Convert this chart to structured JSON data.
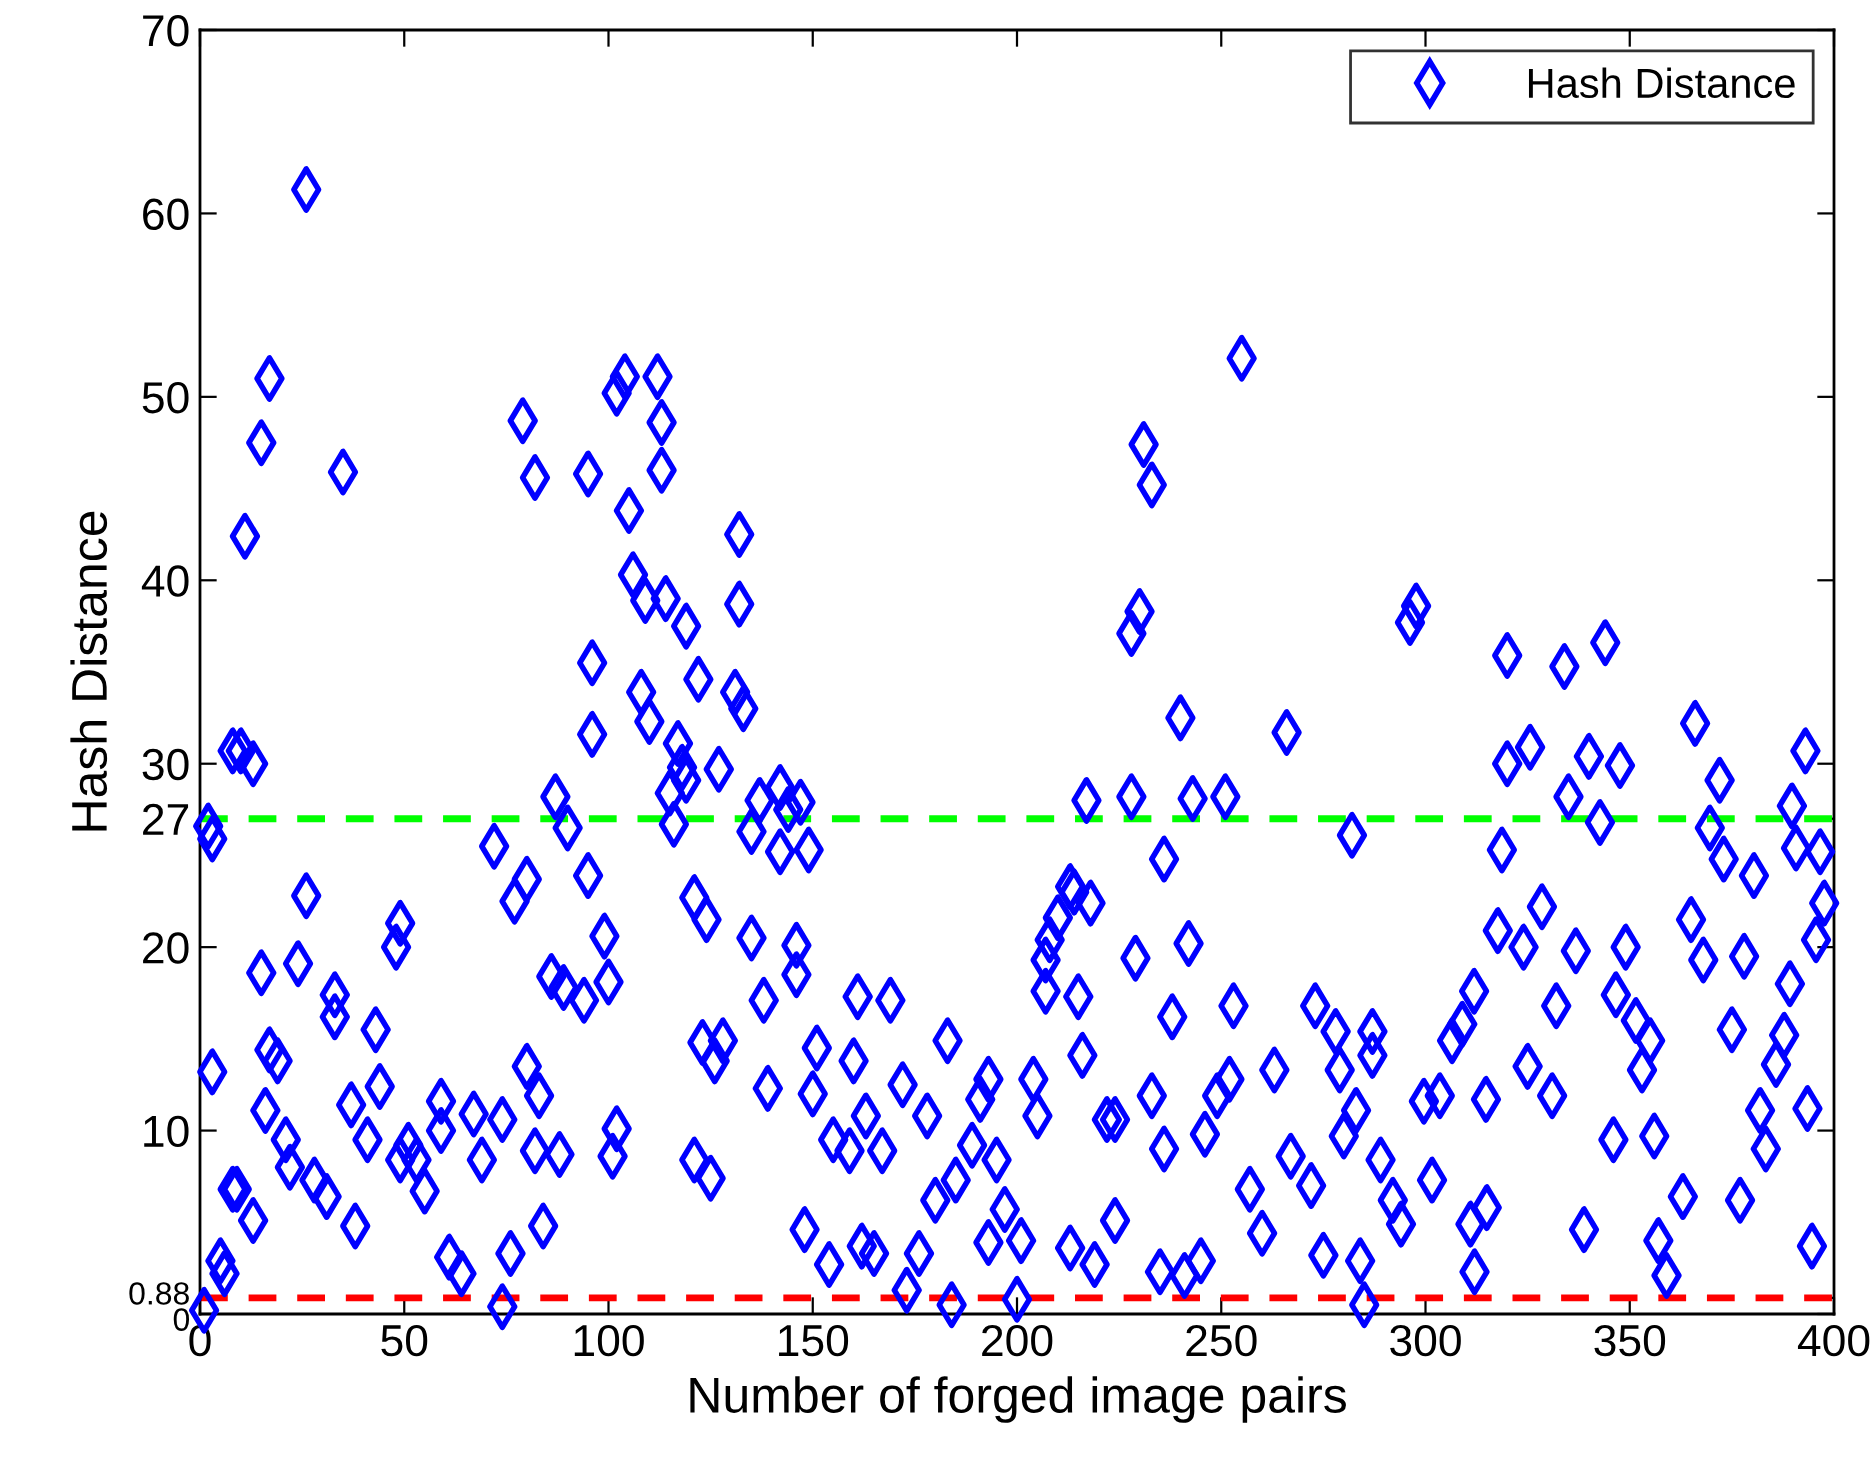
{
  "chart_data": {
    "type": "scatter",
    "xlabel": "Number of forged image pairs",
    "ylabel": "Hash Distance",
    "xlim": [
      0,
      400
    ],
    "xticks": [
      0,
      50,
      100,
      150,
      200,
      250,
      300,
      350,
      400
    ],
    "ylim": [
      0,
      70
    ],
    "yticks": [
      0,
      0.88,
      10,
      20,
      27,
      30,
      40,
      50,
      60,
      70
    ],
    "grid": false,
    "legend": "top right",
    "marker": "diamond",
    "ref_lines": [
      {
        "axis": "y",
        "value": 27,
        "color": "#00ff00",
        "line_style": "dashed"
      },
      {
        "axis": "y",
        "value": 0.88,
        "color": "#ff0000",
        "line_style": "dashed"
      }
    ],
    "series": [
      {
        "name": "Hash Distance",
        "color": "#0000ff",
        "x": [
          2,
          3,
          3,
          5,
          6,
          1,
          8,
          9,
          8,
          10,
          13,
          11,
          15,
          17,
          26,
          35,
          15,
          26,
          24,
          16,
          19,
          21,
          22,
          13,
          17,
          33,
          33,
          28,
          31,
          37,
          43,
          44,
          38,
          41,
          49,
          49,
          48,
          51,
          53,
          55,
          59,
          59,
          61,
          64,
          67,
          69,
          72,
          74,
          74,
          76,
          79,
          82,
          77,
          80,
          80,
          83,
          82,
          84,
          86,
          87,
          89,
          90,
          88,
          94,
          95,
          95,
          96,
          96,
          99,
          100,
          101,
          102,
          102,
          104,
          105,
          106,
          109,
          108,
          110,
          112,
          113,
          113,
          114,
          117,
          118,
          115,
          119,
          116,
          119,
          122,
          121,
          123,
          126,
          124,
          125,
          121,
          128,
          127,
          132,
          132,
          133,
          131,
          135,
          135,
          138,
          139,
          137,
          142,
          144,
          142,
          147,
          149,
          146,
          146,
          148,
          150,
          151,
          154,
          155,
          159,
          161,
          160,
          162,
          163,
          165,
          167,
          169,
          172,
          173,
          176,
          178,
          180,
          183,
          184,
          185,
          189,
          191,
          193,
          193,
          195,
          197,
          200,
          201,
          204,
          205,
          207,
          208,
          207,
          210,
          213,
          214,
          215,
          216,
          218,
          217,
          213,
          219,
          222,
          224,
          224,
          228,
          228,
          230,
          231,
          233,
          229,
          233,
          236,
          236,
          235,
          238,
          240,
          242,
          243,
          241,
          245,
          246,
          249,
          251,
          253,
          255,
          252,
          257,
          260,
          263,
          266,
          267,
          272,
          273,
          275,
          278,
          279,
          280,
          282,
          283,
          284,
          285,
          287,
          287,
          289,
          292,
          294,
          296.2,
          297.7,
          299.6,
          301.6,
          303.5,
          306.5,
          309,
          311.9,
          311,
          312,
          314.8,
          315,
          317.7,
          318.7,
          320,
          320,
          324,
          325,
          325.6,
          328.5,
          331,
          332,
          334,
          335,
          336.8,
          338.8,
          340,
          342.7,
          344,
          346.6,
          346,
          347.6,
          349,
          351.5,
          353,
          355,
          356,
          357,
          359,
          363,
          365,
          366,
          368,
          369.6,
          372,
          373,
          375,
          377,
          378,
          380.4,
          381.9,
          383.3,
          385.8,
          387.8,
          389.2,
          389.7,
          393,
          396.6,
          395.6,
          393.5,
          394.6,
          397.6,
          390.7
        ],
        "values": [
          26.6,
          25.9,
          13.2,
          2.9,
          2.2,
          0.2,
          6.8,
          6.8,
          30.7,
          30.7,
          30,
          42.4,
          47.5,
          51,
          61.3,
          45.9,
          18.6,
          22.8,
          19.1,
          11.1,
          13.8,
          9.5,
          8,
          5.1,
          14.4,
          17.4,
          16.2,
          7.3,
          6.4,
          11.4,
          15.5,
          12.4,
          4.8,
          9.5,
          8.4,
          21.3,
          20,
          9.2,
          8.4,
          6.7,
          11.6,
          10,
          3.1,
          2.2,
          10.9,
          8.4,
          25.5,
          0.4,
          10.6,
          3.3,
          48.7,
          45.6,
          22.5,
          23.7,
          13.5,
          11.9,
          8.9,
          4.8,
          18.4,
          28.2,
          17.8,
          26.5,
          8.7,
          17.1,
          23.9,
          45.8,
          35.5,
          31.6,
          20.6,
          18.1,
          8.6,
          10.1,
          50.2,
          51.1,
          43.8,
          40.3,
          38.9,
          33.9,
          32.3,
          51.1,
          48.6,
          46,
          39,
          31.1,
          29.8,
          28.4,
          29.1,
          26.7,
          37.5,
          34.6,
          22.7,
          14.8,
          13.8,
          21.5,
          7.4,
          8.4,
          14.9,
          29.7,
          42.5,
          38.7,
          33,
          33.9,
          26.3,
          20.5,
          17.1,
          12.3,
          28,
          28.7,
          27.5,
          25.2,
          27.9,
          25.3,
          20.1,
          18.5,
          4.6,
          12,
          14.5,
          2.7,
          9.5,
          8.9,
          17.3,
          13.8,
          3.7,
          10.8,
          3.3,
          8.9,
          17.1,
          12.5,
          1.3,
          3.3,
          10.8,
          6.2,
          14.9,
          0.5,
          7.3,
          9.2,
          11.7,
          12.8,
          3.9,
          8.4,
          5.7,
          0.8,
          4,
          12.8,
          10.8,
          19.3,
          20.4,
          17.6,
          21.6,
          23.3,
          23,
          17.3,
          14.1,
          22.4,
          28,
          3.6,
          2.7,
          10.6,
          10.6,
          5.1,
          28.2,
          37.1,
          38.3,
          47.4,
          45.2,
          19.4,
          11.9,
          24.8,
          9,
          2.3,
          16.2,
          32.5,
          20.2,
          28.1,
          2.1,
          2.9,
          9.8,
          11.9,
          28.2,
          16.8,
          52.1,
          12.8,
          6.8,
          4.4,
          13.3,
          31.7,
          8.6,
          7,
          16.8,
          3.2,
          15.4,
          13.3,
          9.7,
          26.1,
          11.1,
          2.9,
          0.5,
          15.4,
          14.1,
          8.4,
          6.2,
          4.9,
          37.7,
          38.6,
          11.6,
          7.3,
          11.9,
          14.9,
          15.8,
          17.6,
          4.9,
          2.3,
          11.7,
          5.8,
          20.9,
          25.3,
          35.9,
          30,
          20,
          13.5,
          30.9,
          22.2,
          11.9,
          16.8,
          35.3,
          28.2,
          19.8,
          4.6,
          30.4,
          26.8,
          36.6,
          17.4,
          9.5,
          29.9,
          20,
          16,
          13.3,
          14.9,
          9.7,
          4,
          2.1,
          6.4,
          21.5,
          32.2,
          19.3,
          26.5,
          29.1,
          24.8,
          15.5,
          6.2,
          19.5,
          23.9,
          11.1,
          9,
          13.6,
          15.2,
          18,
          27.7,
          30.7,
          25.2,
          20.4,
          11.2,
          3.7,
          22.4,
          25.4
        ]
      }
    ]
  }
}
